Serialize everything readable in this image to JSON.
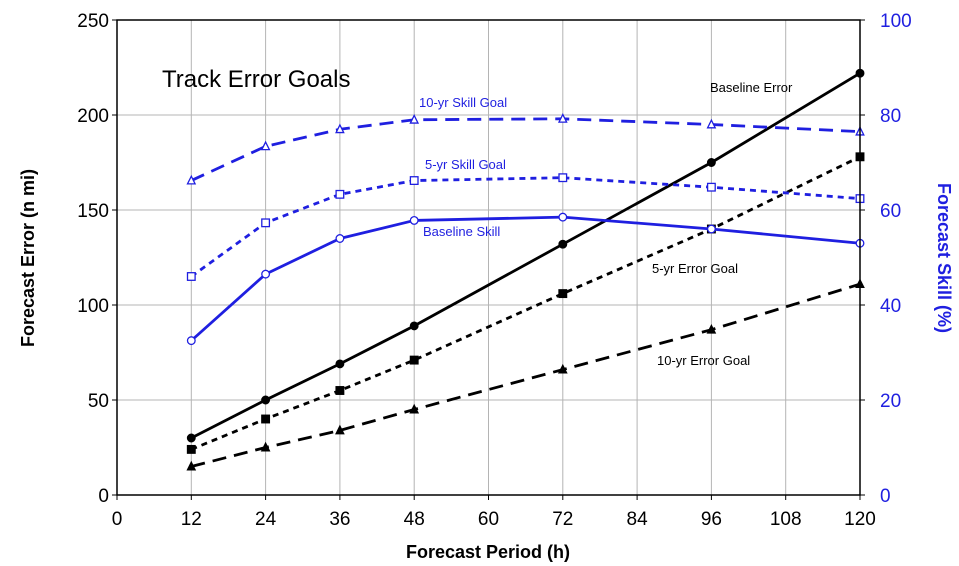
{
  "chart_data": {
    "type": "line",
    "title": "Track Error Goals",
    "xlabel": "Forecast Period (h)",
    "ylabel_left": "Forecast Error (n mi)",
    "ylabel_right": "Forecast Skill (%)",
    "xlim": [
      0,
      120
    ],
    "ylim_left": [
      0,
      250
    ],
    "ylim_right": [
      0,
      100
    ],
    "x_ticks": [
      "0",
      "12",
      "24",
      "36",
      "48",
      "60",
      "72",
      "84",
      "96",
      "108",
      "120"
    ],
    "y_left_ticks": [
      "0",
      "50",
      "100",
      "150",
      "200",
      "250"
    ],
    "y_right_ticks": [
      "0",
      "20",
      "40",
      "60",
      "80",
      "100"
    ],
    "grid": true,
    "colors": {
      "error": "#000000",
      "skill": "#1f1fe0"
    },
    "series": [
      {
        "name": "Baseline Error",
        "axis": "left",
        "color": "#000000",
        "style": "solid",
        "marker": "filled-circle",
        "x": [
          12,
          24,
          36,
          48,
          72,
          96,
          120
        ],
        "values": [
          30,
          50,
          69,
          89,
          132,
          175,
          222
        ]
      },
      {
        "name": "5-yr Error Goal",
        "axis": "left",
        "color": "#000000",
        "style": "short-dash",
        "marker": "filled-square",
        "x": [
          12,
          24,
          36,
          48,
          72,
          96,
          120
        ],
        "values": [
          24,
          40,
          55,
          71,
          106,
          140,
          178
        ]
      },
      {
        "name": "10-yr Error Goal",
        "axis": "left",
        "color": "#000000",
        "style": "long-dash",
        "marker": "filled-triangle",
        "x": [
          12,
          24,
          36,
          48,
          72,
          96,
          120
        ],
        "values": [
          15,
          25,
          34,
          45,
          66,
          87,
          111
        ]
      },
      {
        "name": "Baseline Skill",
        "axis": "right",
        "color": "#1f1fe0",
        "style": "solid",
        "marker": "open-circle",
        "x": [
          12,
          24,
          36,
          48,
          72,
          96,
          120
        ],
        "values": [
          32.5,
          46.5,
          54,
          57.8,
          58.5,
          56,
          53
        ]
      },
      {
        "name": "5-yr Skill Goal",
        "axis": "right",
        "color": "#1f1fe0",
        "style": "short-dash",
        "marker": "open-square",
        "x": [
          12,
          24,
          36,
          48,
          72,
          96,
          120
        ],
        "values": [
          46,
          57.3,
          63.3,
          66.2,
          66.8,
          64.8,
          62.4
        ]
      },
      {
        "name": "10-yr Skill Goal",
        "axis": "right",
        "color": "#1f1fe0",
        "style": "long-dash",
        "marker": "open-triangle",
        "x": [
          12,
          24,
          36,
          48,
          72,
          96,
          120
        ],
        "values": [
          66.2,
          73.4,
          77,
          79,
          79.2,
          78,
          76.5
        ]
      }
    ]
  }
}
